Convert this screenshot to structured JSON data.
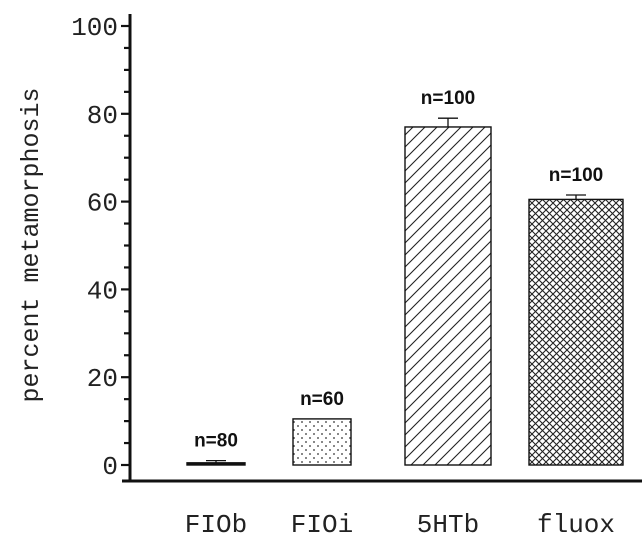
{
  "chart_data": {
    "type": "bar",
    "ylabel": "percent metamorphosis",
    "xlabel": "",
    "ylim": [
      0,
      100
    ],
    "yticks": [
      0,
      20,
      40,
      60,
      80,
      100
    ],
    "ytick_labels": [
      "0",
      "20",
      "40",
      "60",
      "80",
      "100"
    ],
    "categories": [
      "FIOb",
      "FIOi",
      "5HTb",
      "fluox"
    ],
    "values": [
      0.5,
      10.5,
      77,
      60.5
    ],
    "errors": [
      0.5,
      0,
      2,
      1
    ],
    "sample_labels": [
      "n=80",
      "n=60",
      "n=100",
      "n=100"
    ],
    "fill_patterns": [
      "solid-black",
      "dotted",
      "diagonal-hatch",
      "crosshatch"
    ],
    "grid": false,
    "legend": "none"
  }
}
